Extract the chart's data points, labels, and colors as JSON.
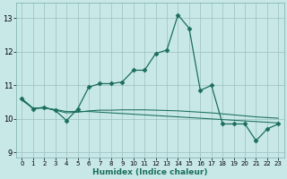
{
  "xlabel": "Humidex (Indice chaleur)",
  "xlim": [
    -0.5,
    23.5
  ],
  "ylim": [
    8.85,
    13.45
  ],
  "yticks": [
    9,
    10,
    11,
    12,
    13
  ],
  "xticks": [
    0,
    1,
    2,
    3,
    4,
    5,
    6,
    7,
    8,
    9,
    10,
    11,
    12,
    13,
    14,
    15,
    16,
    17,
    18,
    19,
    20,
    21,
    22,
    23
  ],
  "bg_color": "#c8e8e8",
  "grid_color": "#9bbfbf",
  "line_color": "#1a6e5c",
  "line1_x": [
    0,
    1,
    2,
    3,
    4,
    5,
    6,
    7,
    8,
    9,
    10,
    11,
    12,
    13,
    14,
    15,
    16,
    17,
    18,
    19,
    20,
    21,
    22,
    23
  ],
  "line1_y": [
    10.6,
    10.3,
    10.35,
    10.25,
    9.95,
    10.3,
    10.95,
    11.05,
    11.05,
    11.1,
    11.45,
    11.45,
    11.95,
    12.05,
    13.1,
    12.7,
    10.85,
    11.0,
    9.85,
    9.85,
    9.85,
    9.35,
    9.7,
    9.85
  ],
  "line2_x": [
    0,
    1,
    2,
    3,
    4,
    5,
    6,
    7,
    8,
    9,
    10,
    11,
    12,
    13,
    14,
    15,
    16,
    17,
    18,
    19,
    20,
    21,
    22,
    23
  ],
  "line2_y": [
    10.55,
    10.32,
    10.32,
    10.28,
    10.22,
    10.22,
    10.22,
    10.2,
    10.18,
    10.16,
    10.14,
    10.12,
    10.1,
    10.08,
    10.06,
    10.04,
    10.02,
    10.0,
    9.98,
    9.96,
    9.94,
    9.92,
    9.9,
    9.88
  ],
  "line3_x": [
    0,
    1,
    2,
    3,
    4,
    5,
    6,
    7,
    8,
    9,
    10,
    11,
    12,
    13,
    14,
    15,
    16,
    17,
    18,
    19,
    20,
    21,
    22,
    23
  ],
  "line3_y": [
    10.6,
    10.32,
    10.33,
    10.26,
    10.18,
    10.2,
    10.24,
    10.26,
    10.26,
    10.27,
    10.27,
    10.27,
    10.26,
    10.25,
    10.24,
    10.22,
    10.2,
    10.18,
    10.15,
    10.12,
    10.09,
    10.06,
    10.04,
    10.02
  ],
  "marker": "D",
  "markersize": 2.5,
  "linewidth": 0.9
}
